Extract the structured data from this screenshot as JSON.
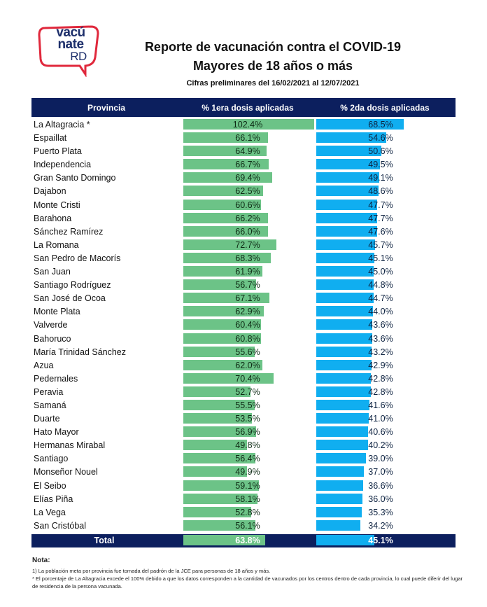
{
  "logo": {
    "line1": "vacú",
    "line2": "nate",
    "line3": "RD"
  },
  "header": {
    "title": "Reporte de vacunación contra el COVID-19",
    "subtitle": "Mayores de 18 años o más",
    "period": "Cifras preliminares del 16/02/2021 al 12/07/2021"
  },
  "table": {
    "columns": [
      "Provincia",
      "% 1era dosis aplicadas",
      "% 2da dosis aplicadas"
    ],
    "total_label": "Total",
    "total_first": "63.8%",
    "total_second": "45.1%"
  },
  "colors": {
    "header_bg": "#0c1f5e",
    "first_dose": "#6cc387",
    "second_dose": "#10aef0",
    "logo_border": "#e0283c"
  },
  "chart_data": {
    "type": "table",
    "title": "Reporte de vacunación contra el COVID-19 — Mayores de 18 años o más",
    "subtitle": "Cifras preliminares del 16/02/2021 al 12/07/2021",
    "categories": [
      "La Altagracia *",
      "Espaillat",
      "Puerto Plata",
      "Independencia",
      "Gran Santo Domingo",
      "Dajabon",
      "Monte Cristi",
      "Barahona",
      "Sánchez Ramírez",
      "La Romana",
      "San Pedro de Macorís",
      "San Juan",
      "Santiago Rodríguez",
      "San José de Ocoa",
      "Monte Plata",
      "Valverde",
      "Bahoruco",
      "María Trinidad Sánchez",
      "Azua",
      "Pedernales",
      "Peravia",
      "Samaná",
      "Duarte",
      "Hato Mayor",
      "Hermanas Mirabal",
      "Santiago",
      "Monseñor Nouel",
      "El Seibo",
      "Elías Piña",
      "La Vega",
      "San Cristóbal"
    ],
    "series": [
      {
        "name": "% 1era dosis aplicadas",
        "values": [
          102.4,
          66.1,
          64.9,
          66.7,
          69.4,
          62.5,
          60.6,
          66.2,
          66.0,
          72.7,
          68.3,
          61.9,
          56.7,
          67.1,
          62.9,
          60.4,
          60.8,
          55.6,
          62.0,
          70.4,
          52.7,
          55.5,
          53.5,
          56.9,
          49.8,
          56.4,
          49.9,
          59.1,
          58.1,
          52.8,
          56.1
        ],
        "total": 63.8
      },
      {
        "name": "% 2da dosis aplicadas",
        "values": [
          68.5,
          54.6,
          50.6,
          49.5,
          49.1,
          48.6,
          47.7,
          47.7,
          47.6,
          45.7,
          45.1,
          45.0,
          44.8,
          44.7,
          44.0,
          43.6,
          43.6,
          43.2,
          42.9,
          42.8,
          42.8,
          41.6,
          41.0,
          40.6,
          40.2,
          39.0,
          37.0,
          36.6,
          36.0,
          35.3,
          34.2
        ],
        "total": 45.1
      }
    ],
    "unit": "%"
  },
  "notes": {
    "heading": "Nota:",
    "line1": "1) La población meta por provincia fue tomada del padrón de la JCE para personas de 18 años y más.",
    "line2": "* El porcentaje de La Altagracia excede el 100% debido a que los datos corresponden a la cantidad de vacunados por los centros dentro de cada provincia, lo cual puede diferir del lugar de residencia de la persona vacunada."
  }
}
